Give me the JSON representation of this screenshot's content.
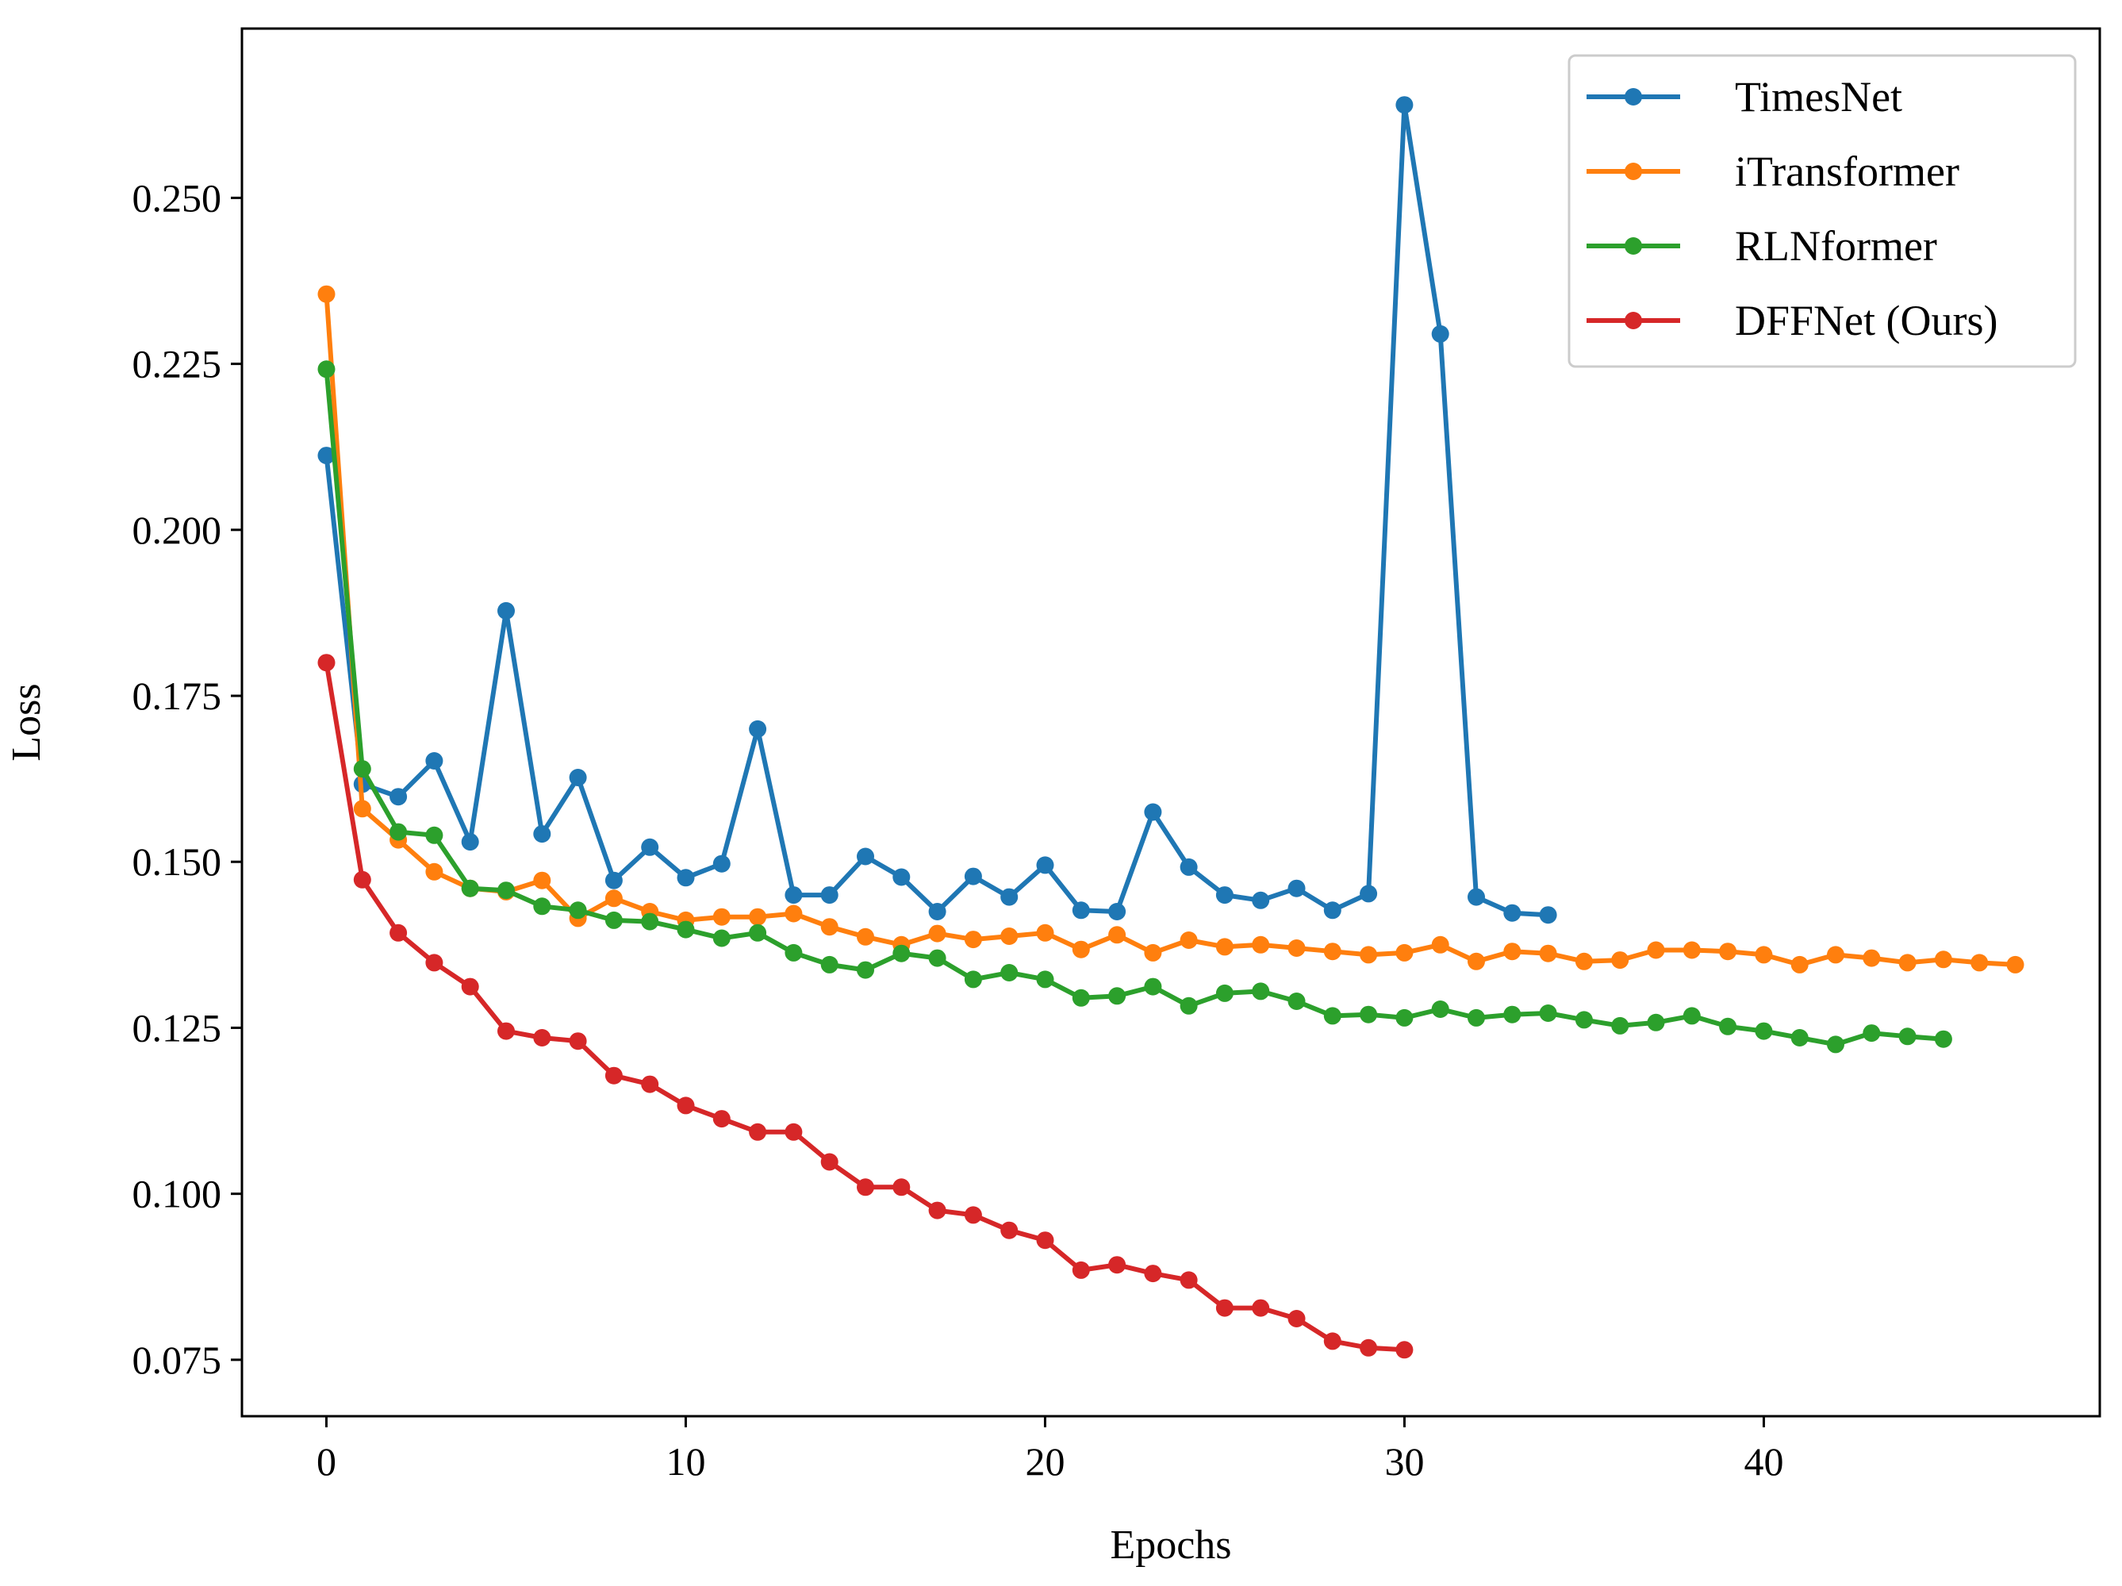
{
  "chart_data": {
    "type": "line",
    "title": "",
    "xlabel": "Epochs",
    "ylabel": "Loss",
    "xlim": [
      -2.35,
      49.35
    ],
    "ylim": [
      0.0665,
      0.2755
    ],
    "xticks": [
      0,
      10,
      20,
      30,
      40
    ],
    "xtick_labels": [
      "0",
      "10",
      "20",
      "30",
      "40"
    ],
    "yticks": [
      0.075,
      0.1,
      0.125,
      0.15,
      0.175,
      0.2,
      0.225,
      0.25
    ],
    "ytick_labels": [
      "0.075",
      "0.100",
      "0.125",
      "0.150",
      "0.175",
      "0.200",
      "0.225",
      "0.250"
    ],
    "grid": false,
    "legend_position": "top-right",
    "series": [
      {
        "name": "TimesNet",
        "color": "#1f77b4",
        "values": [
          0.2112,
          0.1617,
          0.1598,
          0.1652,
          0.153,
          0.1878,
          0.1542,
          0.1627,
          0.1472,
          0.1522,
          0.1476,
          0.1497,
          0.17,
          0.145,
          0.145,
          0.1508,
          0.1477,
          0.1425,
          0.1478,
          0.1447,
          0.1495,
          0.1427,
          0.1425,
          0.1575,
          0.1492,
          0.145,
          0.1442,
          0.146,
          0.1427,
          0.1452,
          0.264,
          0.2295,
          0.1447,
          0.1423,
          0.142
        ]
      },
      {
        "name": "iTransformer",
        "color": "#ff7f0e",
        "values": [
          0.2355,
          0.158,
          0.1533,
          0.1485,
          0.146,
          0.1455,
          0.1472,
          0.1415,
          0.1445,
          0.1425,
          0.1412,
          0.1417,
          0.1417,
          0.1422,
          0.1402,
          0.1387,
          0.1375,
          0.1392,
          0.1383,
          0.1388,
          0.1393,
          0.1368,
          0.139,
          0.1363,
          0.1382,
          0.1372,
          0.1375,
          0.137,
          0.1365,
          0.136,
          0.1363,
          0.1375,
          0.135,
          0.1365,
          0.1362,
          0.135,
          0.1352,
          0.1367,
          0.1367,
          0.1365,
          0.136,
          0.1345,
          0.136,
          0.1355,
          0.1348,
          0.1353,
          0.1348,
          0.1345
        ]
      },
      {
        "name": "RLNformer",
        "color": "#2ca02c",
        "values": [
          0.2242,
          0.164,
          0.1545,
          0.154,
          0.146,
          0.1457,
          0.1433,
          0.1427,
          0.1412,
          0.141,
          0.1398,
          0.1385,
          0.1393,
          0.1363,
          0.1345,
          0.1337,
          0.1362,
          0.1355,
          0.1323,
          0.1333,
          0.1323,
          0.1295,
          0.1298,
          0.1312,
          0.1283,
          0.1302,
          0.1305,
          0.129,
          0.1268,
          0.127,
          0.1265,
          0.1278,
          0.1265,
          0.127,
          0.1272,
          0.1262,
          0.1253,
          0.1258,
          0.1268,
          0.1252,
          0.1245,
          0.1235,
          0.1225,
          0.1242,
          0.1237,
          0.1233
        ]
      },
      {
        "name": "DFFNet (Ours)",
        "color": "#d62728",
        "values": [
          0.18,
          0.1473,
          0.1393,
          0.1348,
          0.1312,
          0.1245,
          0.1235,
          0.123,
          0.1178,
          0.1165,
          0.1133,
          0.1113,
          0.1093,
          0.1093,
          0.1048,
          0.101,
          0.101,
          0.0975,
          0.0968,
          0.0945,
          0.093,
          0.0885,
          0.0893,
          0.088,
          0.087,
          0.0828,
          0.0828,
          0.0812,
          0.0778,
          0.0768,
          0.0765
        ]
      }
    ]
  }
}
